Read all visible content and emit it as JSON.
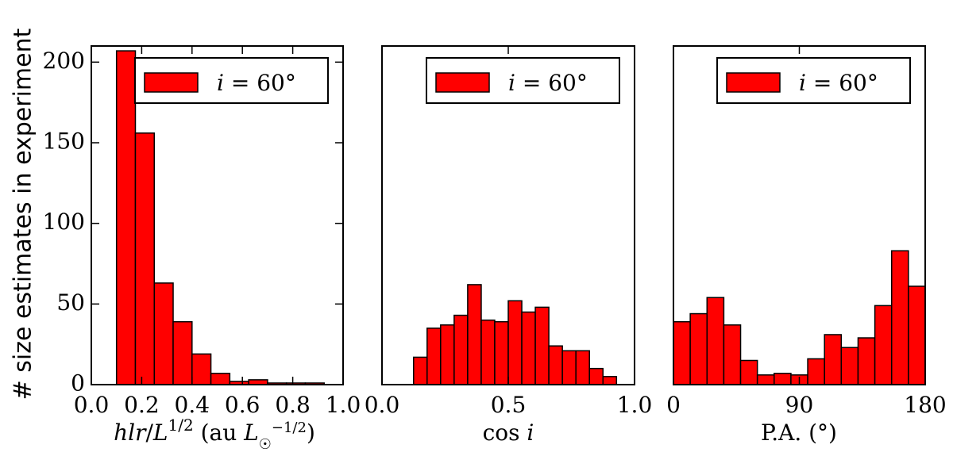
{
  "figure": {
    "ylabel": "# size estimates in experiment"
  },
  "chart_data": [
    {
      "type": "bar",
      "xlabel": "hlr/L^(1/2) (au L☉^(-1/2))",
      "xlim": [
        0.0,
        1.0
      ],
      "ylim": [
        0,
        210
      ],
      "xticks": [
        0.0,
        0.2,
        0.4,
        0.6,
        0.8,
        1.0
      ],
      "xtick_labels": [
        "0.0",
        "0.2",
        "0.4",
        "0.6",
        "0.8",
        "1.0"
      ],
      "yticks": [
        0,
        50,
        100,
        150,
        200
      ],
      "ytick_labels": [
        "0",
        "50",
        "100",
        "150",
        "200"
      ],
      "legend": "i = 60°",
      "legend_position": "top-right",
      "bin_edges": [
        0.1,
        0.175,
        0.25,
        0.325,
        0.4,
        0.475,
        0.55,
        0.625,
        0.7,
        0.775,
        0.85,
        0.925
      ],
      "values": [
        207,
        156,
        63,
        39,
        19,
        7,
        2,
        3,
        1,
        1,
        1
      ],
      "color": "#ff0000"
    },
    {
      "type": "bar",
      "xlabel": "cos i",
      "xlim": [
        0.0,
        1.0
      ],
      "ylim": [
        0,
        210
      ],
      "xticks": [
        0.0,
        0.5,
        1.0
      ],
      "xtick_labels": [
        "0.0",
        "0.5",
        "1.0"
      ],
      "legend": "i = 60°",
      "legend_position": "top-right",
      "bin_edges": [
        0.125,
        0.1786,
        0.2321,
        0.2857,
        0.3393,
        0.3929,
        0.4464,
        0.5,
        0.5536,
        0.6071,
        0.6607,
        0.7143,
        0.7679,
        0.8214,
        0.875,
        0.9286
      ],
      "values": [
        17,
        35,
        37,
        43,
        62,
        40,
        39,
        52,
        45,
        48,
        24,
        21,
        21,
        10,
        5
      ],
      "color": "#ff0000"
    },
    {
      "type": "bar",
      "xlabel": "P.A. (°)",
      "xlim": [
        0,
        180
      ],
      "ylim": [
        0,
        210
      ],
      "xticks": [
        0,
        90,
        180
      ],
      "xtick_labels": [
        "0",
        "90",
        "180"
      ],
      "legend": "i = 60°",
      "legend_position": "top-right",
      "bin_edges": [
        0,
        12,
        24,
        36,
        48,
        60,
        72,
        84,
        96,
        108,
        120,
        132,
        144,
        156,
        168,
        180
      ],
      "values": [
        39,
        44,
        54,
        37,
        15,
        6,
        7,
        6,
        16,
        31,
        23,
        29,
        49,
        83,
        61
      ],
      "color": "#ff0000"
    }
  ]
}
